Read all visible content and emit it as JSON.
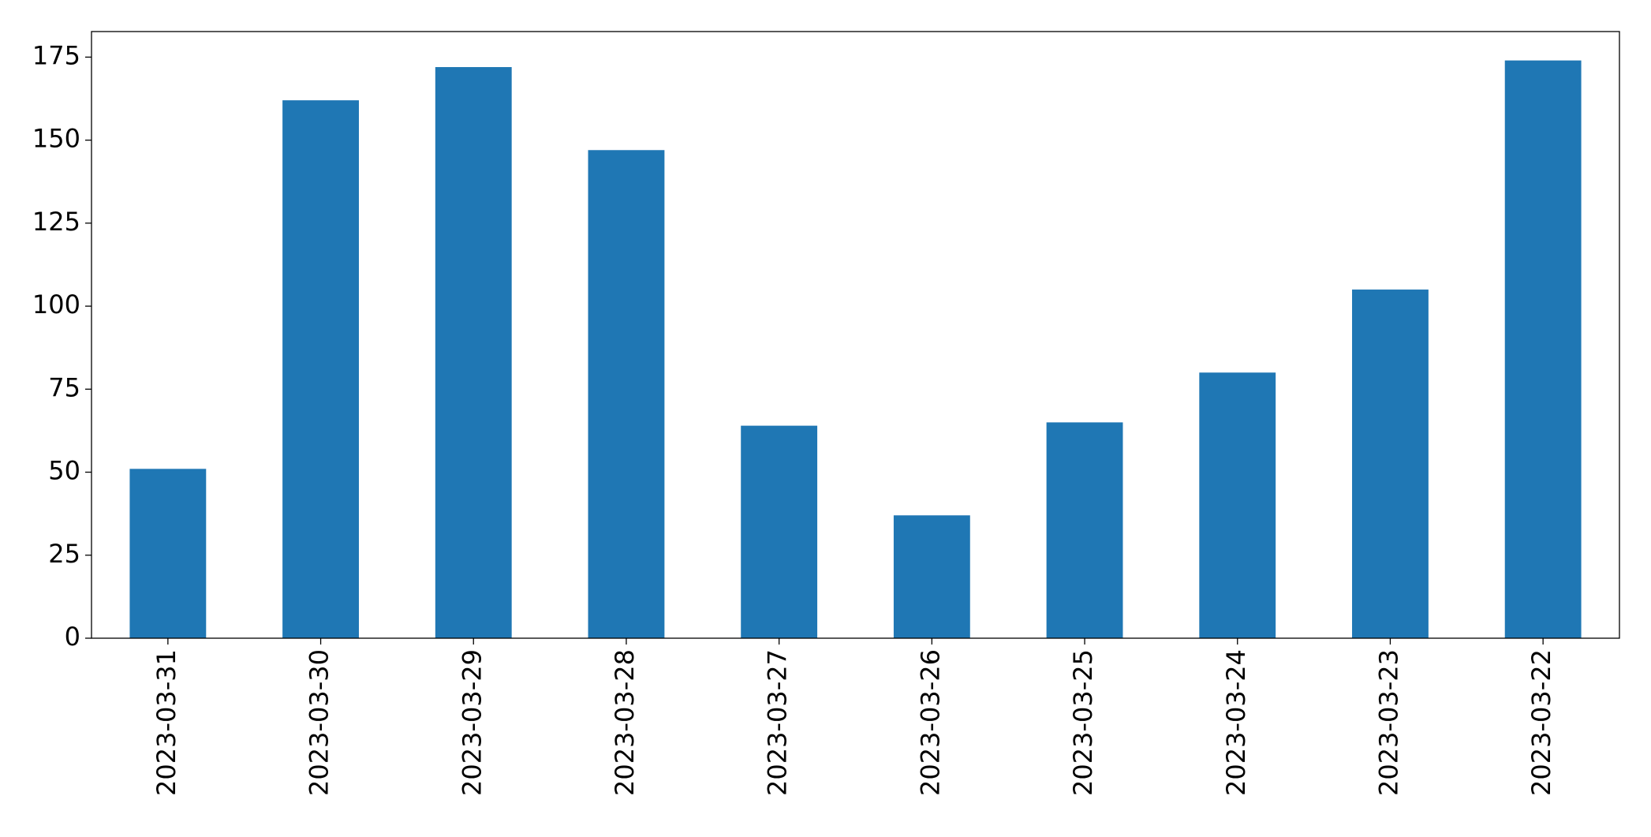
{
  "chart_data": {
    "type": "bar",
    "categories": [
      "2023-03-31",
      "2023-03-30",
      "2023-03-29",
      "2023-03-28",
      "2023-03-27",
      "2023-03-26",
      "2023-03-25",
      "2023-03-24",
      "2023-03-23",
      "2023-03-22"
    ],
    "values": [
      51,
      162,
      172,
      147,
      64,
      37,
      65,
      80,
      105,
      174
    ],
    "color": "#1f77b4",
    "ylim": [
      0,
      182.7
    ],
    "yticks": [
      0,
      25,
      50,
      75,
      100,
      125,
      150,
      175
    ],
    "grid": false
  }
}
